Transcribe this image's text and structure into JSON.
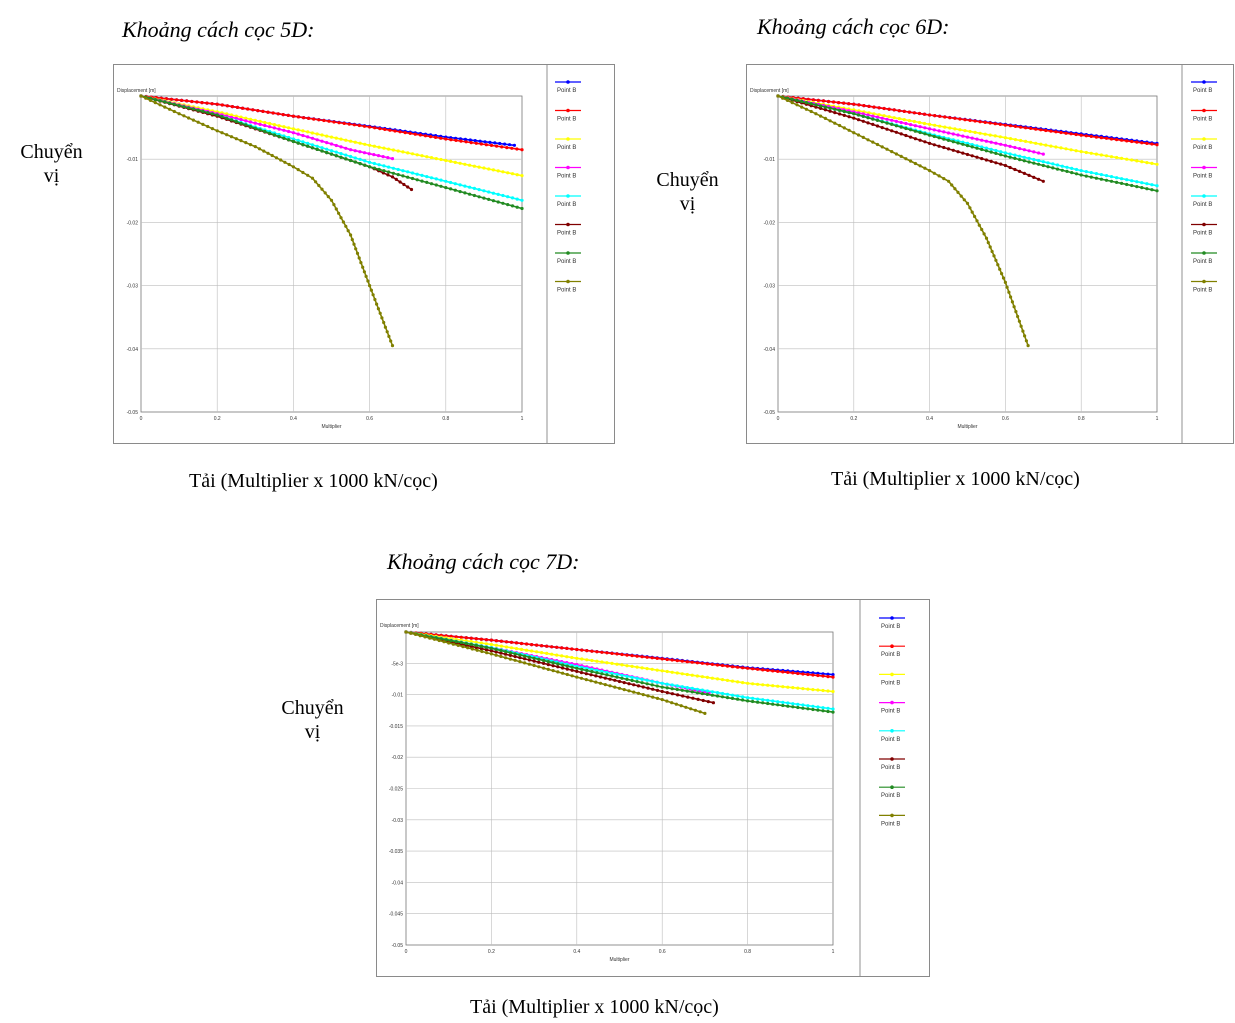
{
  "labels": {
    "ylabel": "Chuyển vị",
    "ylabel_line1": "Chuyển",
    "ylabel_line2": "vị",
    "xlabel": "Tải (Multiplier x 1000 kN/cọc)"
  },
  "legend_label": "Point B",
  "chart_data": [
    {
      "type": "line",
      "title": "Khoảng cách cọc 5D:",
      "plot_ylabel": "Displacement [m]",
      "plot_xlabel": "Multiplier",
      "xlim": [
        0,
        1
      ],
      "ylim": [
        -0.05,
        0
      ],
      "xticks": [
        "0",
        "0.2",
        "0.4",
        "0.6",
        "0.8",
        "1"
      ],
      "yticks": [
        "-0.01",
        "-0.02",
        "-0.03",
        "-0.04",
        "-0.05"
      ],
      "grid": true,
      "legend_position": "right",
      "series": [
        {
          "name": "Point B",
          "color": "#0000ff",
          "points": [
            [
              0,
              0
            ],
            [
              0.2,
              -0.0013
            ],
            [
              0.4,
              -0.0032
            ],
            [
              0.6,
              -0.0048
            ],
            [
              0.8,
              -0.0065
            ],
            [
              0.98,
              -0.0078
            ]
          ]
        },
        {
          "name": "Point B",
          "color": "#ff0000",
          "points": [
            [
              0,
              0
            ],
            [
              0.2,
              -0.0013
            ],
            [
              0.4,
              -0.0032
            ],
            [
              0.6,
              -0.0049
            ],
            [
              0.8,
              -0.0068
            ],
            [
              1,
              -0.0085
            ]
          ]
        },
        {
          "name": "Point B",
          "color": "#ffff00",
          "points": [
            [
              0,
              0
            ],
            [
              0.2,
              -0.0025
            ],
            [
              0.4,
              -0.0052
            ],
            [
              0.6,
              -0.0078
            ],
            [
              0.8,
              -0.0102
            ],
            [
              1,
              -0.0126
            ]
          ]
        },
        {
          "name": "Point B",
          "color": "#ff00ff",
          "points": [
            [
              0,
              0
            ],
            [
              0.2,
              -0.0028
            ],
            [
              0.4,
              -0.0058
            ],
            [
              0.55,
              -0.0085
            ],
            [
              0.66,
              -0.0099
            ]
          ]
        },
        {
          "name": "Point B",
          "color": "#00ffff",
          "points": [
            [
              0,
              0
            ],
            [
              0.2,
              -0.003
            ],
            [
              0.4,
              -0.0068
            ],
            [
              0.6,
              -0.0105
            ],
            [
              0.8,
              -0.0135
            ],
            [
              1,
              -0.0165
            ]
          ]
        },
        {
          "name": "Point B",
          "color": "#800000",
          "points": [
            [
              0,
              0
            ],
            [
              0.2,
              -0.0032
            ],
            [
              0.4,
              -0.0072
            ],
            [
              0.6,
              -0.0112
            ],
            [
              0.66,
              -0.0128
            ],
            [
              0.71,
              -0.0148
            ]
          ]
        },
        {
          "name": "Point B",
          "color": "#228b22",
          "points": [
            [
              0,
              0
            ],
            [
              0.2,
              -0.003
            ],
            [
              0.4,
              -0.0072
            ],
            [
              0.6,
              -0.0112
            ],
            [
              0.8,
              -0.0145
            ],
            [
              1,
              -0.0178
            ]
          ]
        },
        {
          "name": "Point B",
          "color": "#808000",
          "points": [
            [
              0,
              0
            ],
            [
              0.1,
              -0.0028
            ],
            [
              0.2,
              -0.0055
            ],
            [
              0.3,
              -0.008
            ],
            [
              0.4,
              -0.0112
            ],
            [
              0.45,
              -0.013
            ],
            [
              0.5,
              -0.0165
            ],
            [
              0.55,
              -0.022
            ],
            [
              0.6,
              -0.03
            ],
            [
              0.66,
              -0.0395
            ]
          ]
        }
      ]
    },
    {
      "type": "line",
      "title": "Khoảng cách cọc 6D:",
      "plot_ylabel": "Displacement [m]",
      "plot_xlabel": "Multiplier",
      "xlim": [
        0,
        1
      ],
      "ylim": [
        -0.05,
        0
      ],
      "xticks": [
        "0",
        "0.2",
        "0.4",
        "0.6",
        "0.8",
        "1"
      ],
      "yticks": [
        "-0.01",
        "-0.02",
        "-0.03",
        "-0.04",
        "-0.05"
      ],
      "grid": true,
      "legend_position": "right",
      "series": [
        {
          "name": "Point B",
          "color": "#0000ff",
          "points": [
            [
              0,
              0
            ],
            [
              0.2,
              -0.0013
            ],
            [
              0.4,
              -0.003
            ],
            [
              0.6,
              -0.0045
            ],
            [
              0.8,
              -0.006
            ],
            [
              1,
              -0.0075
            ]
          ]
        },
        {
          "name": "Point B",
          "color": "#ff0000",
          "points": [
            [
              0,
              0
            ],
            [
              0.2,
              -0.0013
            ],
            [
              0.4,
              -0.003
            ],
            [
              0.6,
              -0.0046
            ],
            [
              0.8,
              -0.0062
            ],
            [
              1,
              -0.0077
            ]
          ]
        },
        {
          "name": "Point B",
          "color": "#ffff00",
          "points": [
            [
              0,
              0
            ],
            [
              0.2,
              -0.0022
            ],
            [
              0.4,
              -0.0045
            ],
            [
              0.6,
              -0.0066
            ],
            [
              0.8,
              -0.0088
            ],
            [
              1,
              -0.0108
            ]
          ]
        },
        {
          "name": "Point B",
          "color": "#ff00ff",
          "points": [
            [
              0,
              0
            ],
            [
              0.2,
              -0.0025
            ],
            [
              0.4,
              -0.0052
            ],
            [
              0.6,
              -0.0078
            ],
            [
              0.7,
              -0.0092
            ]
          ]
        },
        {
          "name": "Point B",
          "color": "#00ffff",
          "points": [
            [
              0,
              0
            ],
            [
              0.2,
              -0.0028
            ],
            [
              0.4,
              -0.006
            ],
            [
              0.6,
              -0.009
            ],
            [
              0.8,
              -0.0118
            ],
            [
              1,
              -0.0142
            ]
          ]
        },
        {
          "name": "Point B",
          "color": "#800000",
          "points": [
            [
              0,
              0
            ],
            [
              0.2,
              -0.0035
            ],
            [
              0.4,
              -0.0075
            ],
            [
              0.6,
              -0.011
            ],
            [
              0.7,
              -0.0135
            ]
          ]
        },
        {
          "name": "Point B",
          "color": "#228b22",
          "points": [
            [
              0,
              0
            ],
            [
              0.2,
              -0.0028
            ],
            [
              0.4,
              -0.0062
            ],
            [
              0.6,
              -0.0095
            ],
            [
              0.8,
              -0.0125
            ],
            [
              1,
              -0.015
            ]
          ]
        },
        {
          "name": "Point B",
          "color": "#808000",
          "points": [
            [
              0,
              0
            ],
            [
              0.1,
              -0.0028
            ],
            [
              0.2,
              -0.0058
            ],
            [
              0.3,
              -0.0088
            ],
            [
              0.4,
              -0.0118
            ],
            [
              0.45,
              -0.0135
            ],
            [
              0.5,
              -0.017
            ],
            [
              0.55,
              -0.0225
            ],
            [
              0.6,
              -0.0295
            ],
            [
              0.66,
              -0.0395
            ]
          ]
        }
      ]
    },
    {
      "type": "line",
      "title": "Khoảng cách cọc 7D:",
      "plot_ylabel": "Displacement [m]",
      "plot_xlabel": "Multiplier",
      "xlim": [
        0,
        1
      ],
      "ylim": [
        -0.05,
        0
      ],
      "xticks": [
        "0",
        "0.2",
        "0.4",
        "0.6",
        "0.8",
        "1"
      ],
      "yticks": [
        "-5e-3",
        "-0.01",
        "-0.015",
        "-0.02",
        "-0.025",
        "-0.03",
        "-0.035",
        "-0.04",
        "-0.045",
        "-0.05"
      ],
      "grid": true,
      "legend_position": "right",
      "series": [
        {
          "name": "Point B",
          "color": "#0000ff",
          "points": [
            [
              0,
              0
            ],
            [
              0.2,
              -0.0013
            ],
            [
              0.4,
              -0.0028
            ],
            [
              0.6,
              -0.0042
            ],
            [
              0.8,
              -0.0057
            ],
            [
              1,
              -0.0068
            ]
          ]
        },
        {
          "name": "Point B",
          "color": "#ff0000",
          "points": [
            [
              0,
              0
            ],
            [
              0.2,
              -0.0013
            ],
            [
              0.4,
              -0.0028
            ],
            [
              0.6,
              -0.0043
            ],
            [
              0.8,
              -0.0058
            ],
            [
              1,
              -0.0072
            ]
          ]
        },
        {
          "name": "Point B",
          "color": "#ffff00",
          "points": [
            [
              0,
              0
            ],
            [
              0.2,
              -0.002
            ],
            [
              0.4,
              -0.0042
            ],
            [
              0.6,
              -0.0062
            ],
            [
              0.8,
              -0.0082
            ],
            [
              1,
              -0.0095
            ]
          ]
        },
        {
          "name": "Point B",
          "color": "#ff00ff",
          "points": [
            [
              0,
              0
            ],
            [
              0.2,
              -0.0025
            ],
            [
              0.4,
              -0.0052
            ],
            [
              0.6,
              -0.0082
            ],
            [
              0.71,
              -0.0097
            ]
          ]
        },
        {
          "name": "Point B",
          "color": "#00ffff",
          "points": [
            [
              0,
              0
            ],
            [
              0.2,
              -0.0025
            ],
            [
              0.4,
              -0.0055
            ],
            [
              0.6,
              -0.0082
            ],
            [
              0.8,
              -0.0105
            ],
            [
              1,
              -0.0123
            ]
          ]
        },
        {
          "name": "Point B",
          "color": "#800000",
          "points": [
            [
              0,
              0
            ],
            [
              0.2,
              -0.003
            ],
            [
              0.4,
              -0.0063
            ],
            [
              0.6,
              -0.0095
            ],
            [
              0.72,
              -0.0113
            ]
          ]
        },
        {
          "name": "Point B",
          "color": "#228b22",
          "points": [
            [
              0,
              0
            ],
            [
              0.2,
              -0.0026
            ],
            [
              0.4,
              -0.0058
            ],
            [
              0.6,
              -0.0088
            ],
            [
              0.8,
              -0.011
            ],
            [
              1,
              -0.0128
            ]
          ]
        },
        {
          "name": "Point B",
          "color": "#808000",
          "points": [
            [
              0,
              0
            ],
            [
              0.2,
              -0.0035
            ],
            [
              0.4,
              -0.0072
            ],
            [
              0.6,
              -0.0108
            ],
            [
              0.7,
              -0.013
            ]
          ]
        }
      ]
    }
  ]
}
